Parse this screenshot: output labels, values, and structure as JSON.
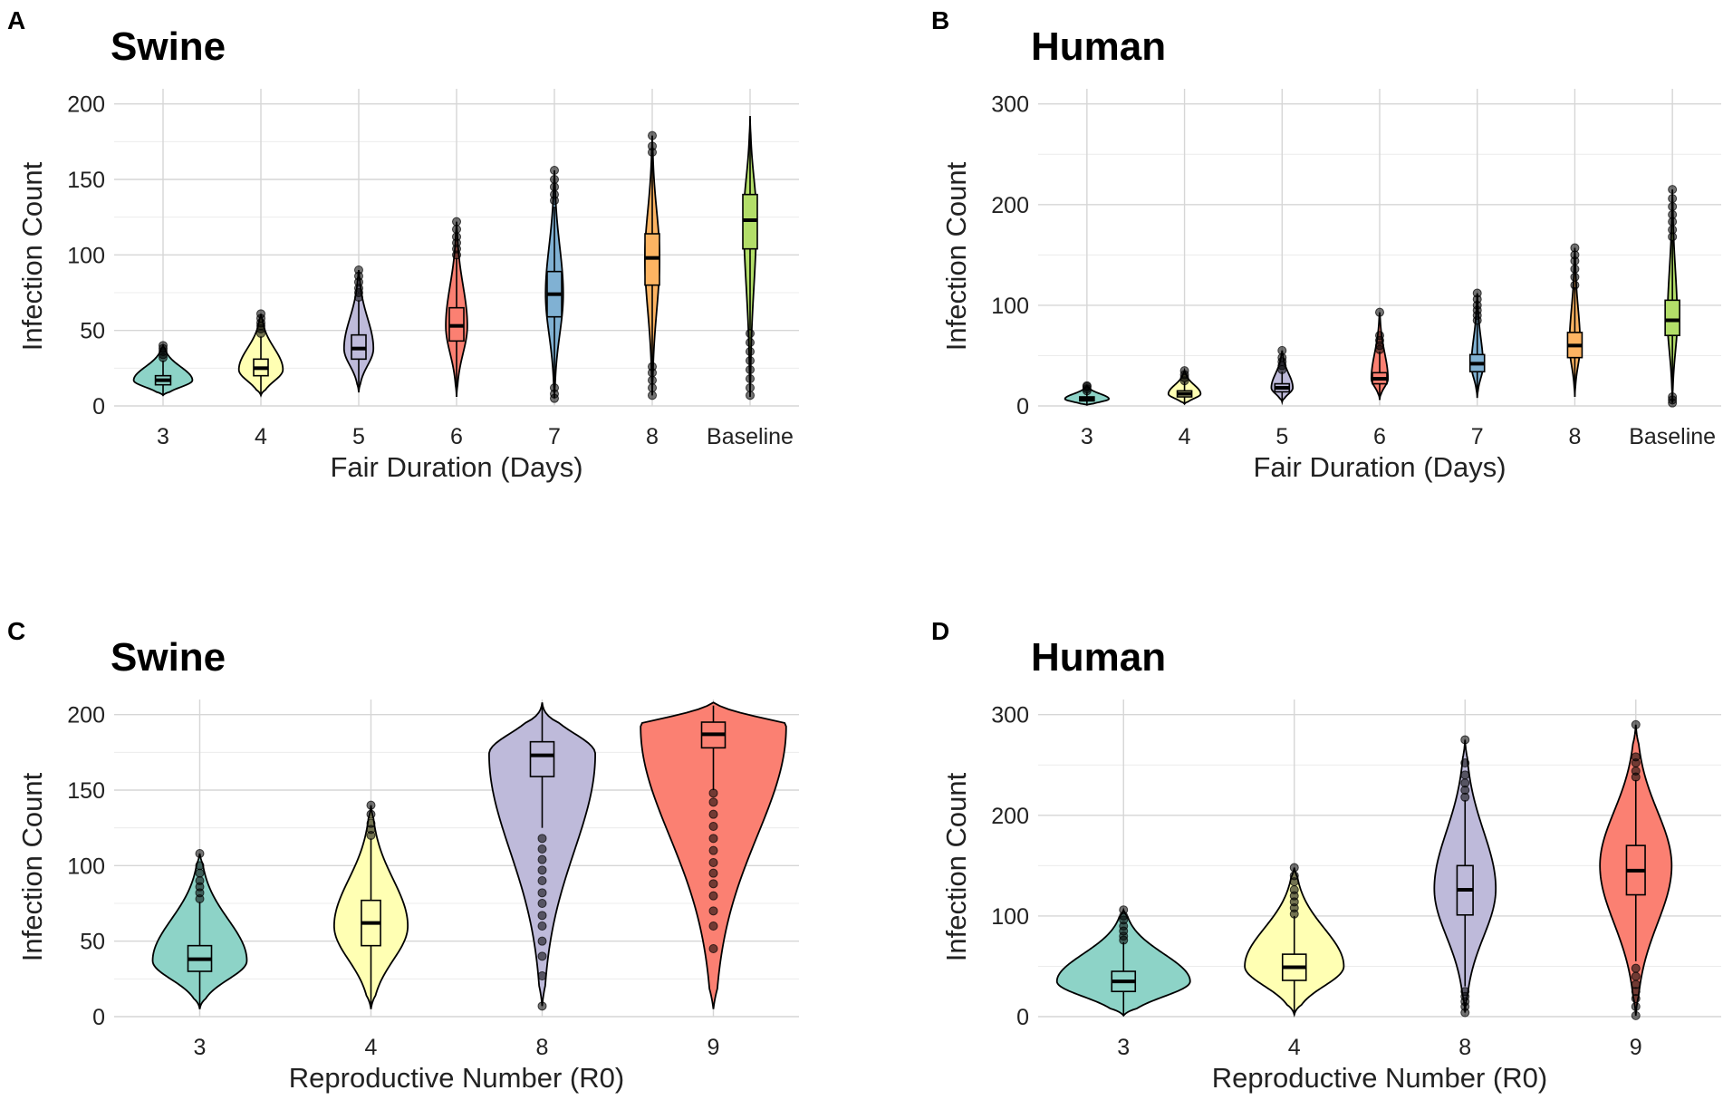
{
  "chart_data": [
    {
      "type": "violin",
      "letter": "A",
      "title": "Swine",
      "xlabel": "Fair Duration (Days)",
      "ylabel": "Infection Count",
      "ylim": [
        0,
        210
      ],
      "yticks": [
        0,
        50,
        100,
        150,
        200
      ],
      "categories": [
        "3",
        "4",
        "5",
        "6",
        "7",
        "8",
        "Baseline"
      ],
      "colors": [
        "#8dd3c7",
        "#ffffb3",
        "#bebada",
        "#fb8072",
        "#80b1d3",
        "#fdb462",
        "#b3de69"
      ],
      "series": [
        {
          "min": 7,
          "max": 40,
          "q1": 14,
          "median": 17,
          "q3": 20,
          "wlo": 7,
          "whi": 30,
          "mode": 17,
          "halfwidth": 0.6,
          "outliers": [
            32,
            34,
            36,
            38,
            40
          ]
        },
        {
          "min": 7,
          "max": 61,
          "q1": 20,
          "median": 25,
          "q3": 31,
          "wlo": 7,
          "whi": 46,
          "mode": 24,
          "halfwidth": 0.45,
          "outliers": [
            48,
            51,
            53,
            55,
            58,
            61
          ]
        },
        {
          "min": 9,
          "max": 90,
          "q1": 31,
          "median": 38,
          "q3": 47,
          "wlo": 9,
          "whi": 70,
          "mode": 38,
          "halfwidth": 0.3,
          "outliers": [
            72,
            75,
            78,
            82,
            86,
            90
          ]
        },
        {
          "min": 6,
          "max": 122,
          "q1": 43,
          "median": 53,
          "q3": 65,
          "wlo": 6,
          "whi": 98,
          "mode": 53,
          "halfwidth": 0.22,
          "outliers": [
            100,
            104,
            108,
            112,
            117,
            122
          ]
        },
        {
          "min": 5,
          "max": 156,
          "q1": 59,
          "median": 74,
          "q3": 89,
          "wlo": 12,
          "whi": 132,
          "mode": 74,
          "halfwidth": 0.18,
          "outliers": [
            5,
            8,
            12,
            136,
            140,
            145,
            150,
            156
          ]
        },
        {
          "min": 7,
          "max": 179,
          "q1": 80,
          "median": 98,
          "q3": 114,
          "wlo": 25,
          "whi": 165,
          "mode": 98,
          "halfwidth": 0.15,
          "outliers": [
            7,
            12,
            17,
            22,
            26,
            168,
            172,
            179
          ]
        },
        {
          "min": 6,
          "max": 192,
          "q1": 104,
          "median": 123,
          "q3": 140,
          "wlo": 50,
          "whi": 190,
          "mode": 125,
          "halfwidth": 0.13,
          "outliers": [
            7,
            12,
            18,
            24,
            30,
            36,
            42,
            48
          ]
        }
      ]
    },
    {
      "type": "violin",
      "letter": "B",
      "title": "Human",
      "xlabel": "Fair Duration (Days)",
      "ylabel": "Infection Count",
      "ylim": [
        0,
        315
      ],
      "yticks": [
        0,
        100,
        200,
        300
      ],
      "categories": [
        "3",
        "4",
        "5",
        "6",
        "7",
        "8",
        "Baseline"
      ],
      "colors": [
        "#8dd3c7",
        "#ffffb3",
        "#bebada",
        "#fb8072",
        "#80b1d3",
        "#fdb462",
        "#b3de69"
      ],
      "series": [
        {
          "min": 1,
          "max": 20,
          "q1": 5,
          "median": 7,
          "q3": 9,
          "wlo": 1,
          "whi": 14,
          "mode": 7,
          "halfwidth": 0.45,
          "outliers": [
            15,
            17,
            19,
            20
          ]
        },
        {
          "min": 2,
          "max": 35,
          "q1": 9,
          "median": 12,
          "q3": 15,
          "wlo": 2,
          "whi": 24,
          "mode": 12,
          "halfwidth": 0.33,
          "outliers": [
            25,
            28,
            31,
            35
          ]
        },
        {
          "min": 4,
          "max": 55,
          "q1": 14,
          "median": 18,
          "q3": 22,
          "wlo": 4,
          "whi": 34,
          "mode": 18,
          "halfwidth": 0.22,
          "outliers": [
            36,
            40,
            44,
            48,
            55
          ]
        },
        {
          "min": 6,
          "max": 93,
          "q1": 22,
          "median": 27,
          "q3": 33,
          "wlo": 6,
          "whi": 54,
          "mode": 27,
          "halfwidth": 0.17,
          "outliers": [
            56,
            60,
            65,
            70,
            93
          ]
        },
        {
          "min": 8,
          "max": 112,
          "q1": 34,
          "median": 42,
          "q3": 51,
          "wlo": 8,
          "whi": 82,
          "mode": 40,
          "halfwidth": 0.12,
          "outliers": [
            85,
            90,
            95,
            100,
            106,
            112
          ]
        },
        {
          "min": 9,
          "max": 157,
          "q1": 48,
          "median": 60,
          "q3": 73,
          "wlo": 9,
          "whi": 118,
          "mode": 60,
          "halfwidth": 0.11,
          "outliers": [
            120,
            128,
            136,
            144,
            150,
            157
          ]
        },
        {
          "min": 3,
          "max": 215,
          "q1": 70,
          "median": 85,
          "q3": 105,
          "wlo": 14,
          "whi": 165,
          "mode": 85,
          "halfwidth": 0.1,
          "outliers": [
            3,
            6,
            9,
            168,
            175,
            183,
            190,
            198,
            206,
            215
          ]
        }
      ]
    },
    {
      "type": "violin",
      "letter": "C",
      "title": "Swine",
      "xlabel": "Reproductive Number (R0)",
      "ylabel": "Infection Count",
      "ylim": [
        0,
        210
      ],
      "yticks": [
        0,
        50,
        100,
        150,
        200
      ],
      "categories": [
        "3",
        "4",
        "8",
        "9"
      ],
      "colors": [
        "#8dd3c7",
        "#ffffb3",
        "#bebada",
        "#fb8072"
      ],
      "series": [
        {
          "min": 5,
          "max": 108,
          "q1": 30,
          "median": 38,
          "q3": 47,
          "wlo": 5,
          "whi": 76,
          "mode": 37,
          "halfwidth": 0.55,
          "outliers": [
            78,
            82,
            86,
            90,
            95,
            100,
            108
          ]
        },
        {
          "min": 5,
          "max": 140,
          "q1": 47,
          "median": 62,
          "q3": 77,
          "wlo": 5,
          "whi": 118,
          "mode": 60,
          "halfwidth": 0.43,
          "outliers": [
            120,
            124,
            128,
            134,
            140
          ]
        },
        {
          "min": 7,
          "max": 208,
          "q1": 159,
          "median": 173,
          "q3": 182,
          "wlo": 125,
          "whi": 205,
          "mode": 174,
          "halfwidth": 0.62,
          "outliers": [
            7,
            27,
            40,
            50,
            60,
            67,
            75,
            82,
            90,
            97,
            104,
            111,
            118
          ]
        },
        {
          "min": 5,
          "max": 208,
          "q1": 178,
          "median": 187,
          "q3": 195,
          "wlo": 150,
          "whi": 206,
          "mode": 192,
          "halfwidth": 0.85,
          "outliers": [
            45,
            60,
            70,
            80,
            88,
            95,
            102,
            110,
            118,
            126,
            134,
            142,
            148
          ]
        }
      ]
    },
    {
      "type": "violin",
      "letter": "D",
      "title": "Human",
      "xlabel": "Reproductive Number (R0)",
      "ylabel": "Infection Count",
      "ylim": [
        0,
        315
      ],
      "yticks": [
        0,
        100,
        200,
        300
      ],
      "categories": [
        "3",
        "4",
        "8",
        "9"
      ],
      "colors": [
        "#8dd3c7",
        "#ffffb3",
        "#bebada",
        "#fb8072"
      ],
      "series": [
        {
          "min": 1,
          "max": 106,
          "q1": 25,
          "median": 35,
          "q3": 45,
          "wlo": 1,
          "whi": 74,
          "mode": 35,
          "halfwidth": 0.78,
          "outliers": [
            76,
            80,
            85,
            90,
            96,
            100,
            106
          ]
        },
        {
          "min": 2,
          "max": 148,
          "q1": 36,
          "median": 49,
          "q3": 62,
          "wlo": 2,
          "whi": 100,
          "mode": 50,
          "halfwidth": 0.58,
          "outliers": [
            102,
            108,
            114,
            120,
            126,
            134,
            140,
            148
          ]
        },
        {
          "min": 4,
          "max": 275,
          "q1": 101,
          "median": 126,
          "q3": 150,
          "wlo": 30,
          "whi": 215,
          "mode": 127,
          "halfwidth": 0.36,
          "outliers": [
            4,
            10,
            15,
            20,
            25,
            218,
            225,
            232,
            240,
            252,
            275
          ]
        },
        {
          "min": 1,
          "max": 290,
          "q1": 121,
          "median": 145,
          "q3": 170,
          "wlo": 55,
          "whi": 235,
          "mode": 150,
          "halfwidth": 0.42,
          "outliers": [
            1,
            10,
            18,
            25,
            32,
            40,
            48,
            238,
            244,
            252,
            258,
            290
          ]
        }
      ]
    }
  ]
}
